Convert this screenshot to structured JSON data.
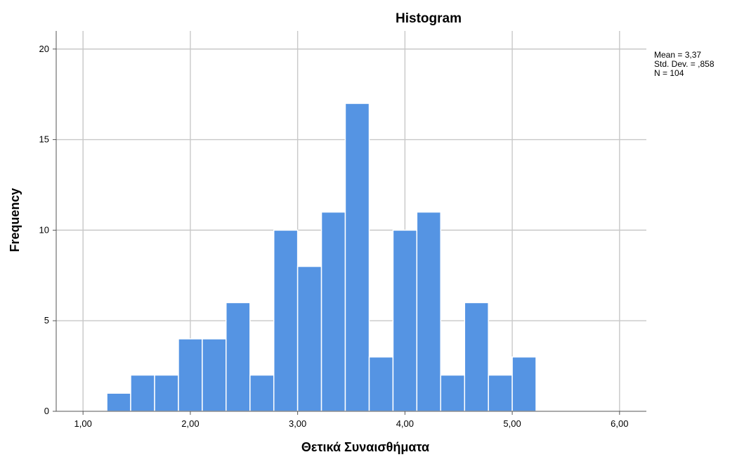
{
  "chart_data": {
    "type": "bar",
    "title": "Histogram",
    "xlabel": "Θετικά Συναισθήματα",
    "ylabel": "Frequency",
    "xlim": [
      0.75,
      6.25
    ],
    "ylim": [
      0,
      21
    ],
    "x_ticks": [
      1,
      2,
      3,
      4,
      5,
      6
    ],
    "x_tick_labels": [
      "1,00",
      "2,00",
      "3,00",
      "4,00",
      "5,00",
      "6,00"
    ],
    "y_ticks": [
      0,
      5,
      10,
      15,
      20
    ],
    "y_tick_labels": [
      "0",
      "5",
      "10",
      "15",
      "20"
    ],
    "grid": true,
    "bar_color": "#5594e3",
    "bins": [
      {
        "x0": 1.222,
        "x1": 1.444,
        "count": 1
      },
      {
        "x0": 1.444,
        "x1": 1.667,
        "count": 2
      },
      {
        "x0": 1.667,
        "x1": 1.889,
        "count": 2
      },
      {
        "x0": 1.889,
        "x1": 2.111,
        "count": 4
      },
      {
        "x0": 2.111,
        "x1": 2.333,
        "count": 4
      },
      {
        "x0": 2.333,
        "x1": 2.556,
        "count": 6
      },
      {
        "x0": 2.556,
        "x1": 2.778,
        "count": 2
      },
      {
        "x0": 2.778,
        "x1": 3.0,
        "count": 10
      },
      {
        "x0": 3.0,
        "x1": 3.222,
        "count": 8
      },
      {
        "x0": 3.222,
        "x1": 3.444,
        "count": 11
      },
      {
        "x0": 3.444,
        "x1": 3.667,
        "count": 17
      },
      {
        "x0": 3.667,
        "x1": 3.889,
        "count": 3
      },
      {
        "x0": 3.889,
        "x1": 4.111,
        "count": 10
      },
      {
        "x0": 4.111,
        "x1": 4.333,
        "count": 11
      },
      {
        "x0": 4.333,
        "x1": 4.556,
        "count": 2
      },
      {
        "x0": 4.556,
        "x1": 4.778,
        "count": 6
      },
      {
        "x0": 4.778,
        "x1": 5.0,
        "count": 2
      },
      {
        "x0": 5.0,
        "x1": 5.222,
        "count": 3
      }
    ],
    "stats": {
      "mean": "Mean = 3,37",
      "std_dev": "Std. Dev. = ,858",
      "n": "N = 104"
    }
  }
}
